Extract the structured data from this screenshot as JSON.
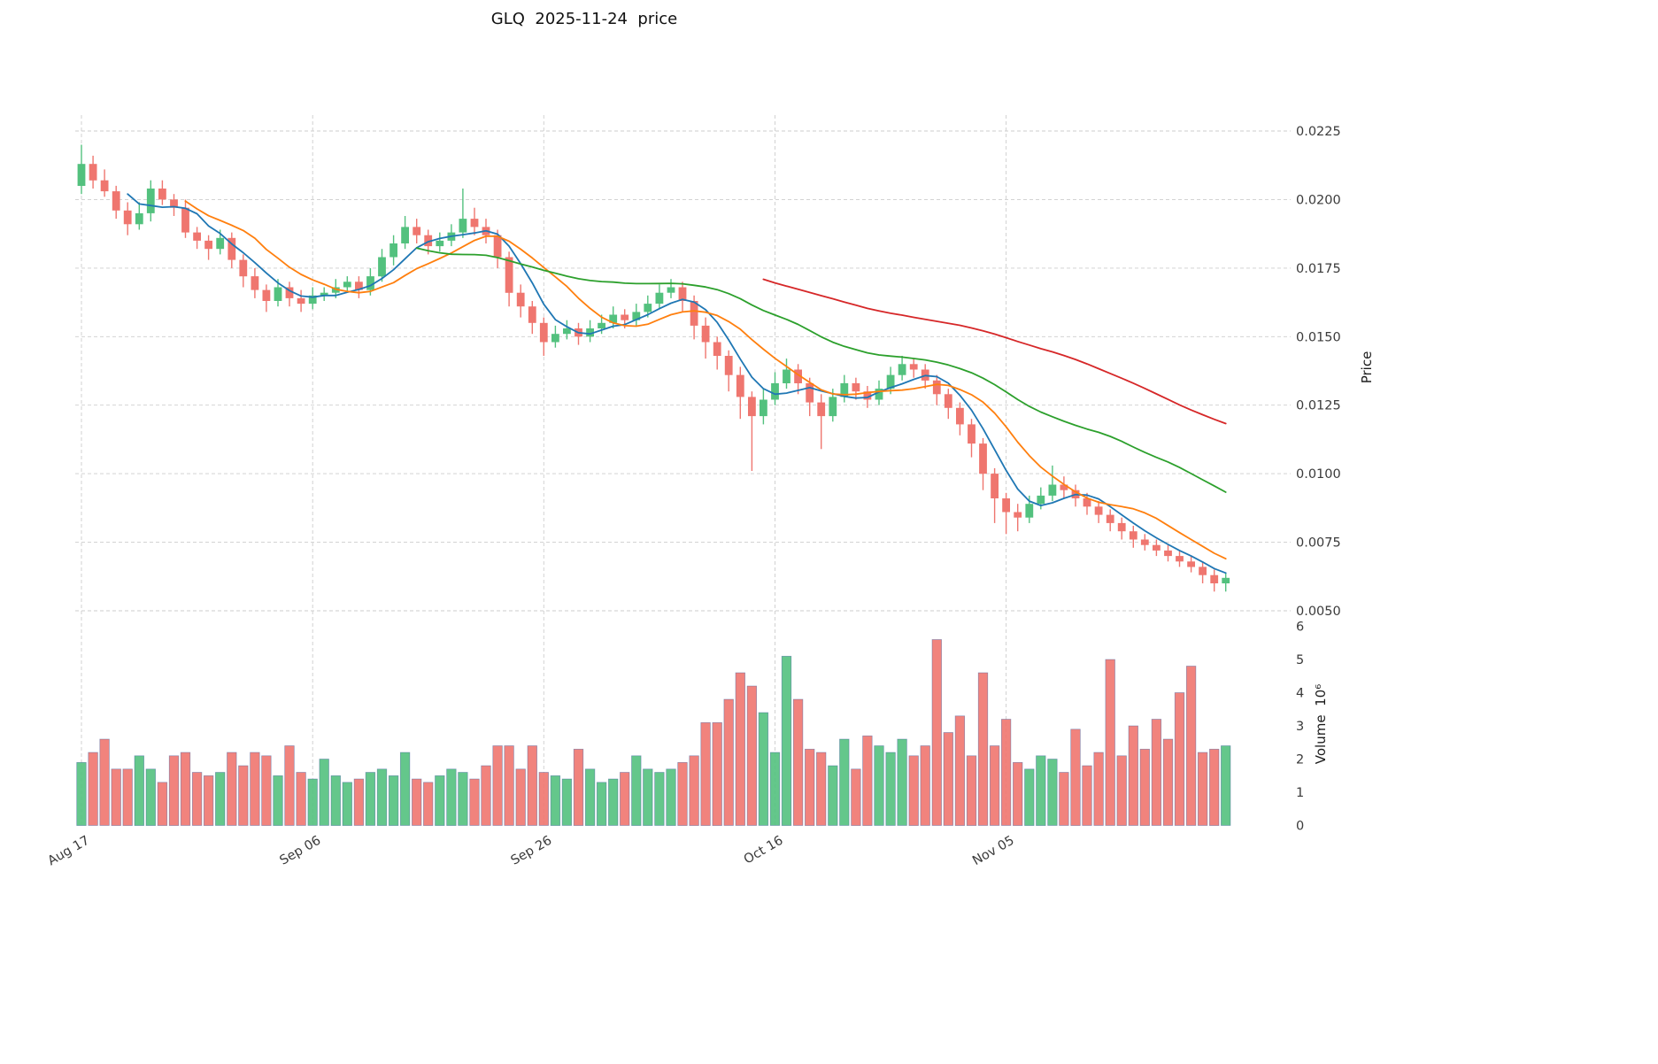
{
  "chart_data": {
    "type": "candlestick",
    "title": "GLQ  2025-11-24  price",
    "price_axis": {
      "label": "Price",
      "ticks": [
        "0.0050",
        "0.0075",
        "0.0100",
        "0.0125",
        "0.0150",
        "0.0175",
        "0.0200",
        "0.0225"
      ]
    },
    "volume_axis": {
      "label": "Volume  10⁶",
      "ticks": [
        "0",
        "1",
        "2",
        "3",
        "4",
        "5",
        "6"
      ],
      "unit": "10⁶"
    },
    "x_ticks": [
      {
        "index": 0,
        "label": "Aug 17"
      },
      {
        "index": 20,
        "label": "Sep 06"
      },
      {
        "index": 40,
        "label": "Sep 26"
      },
      {
        "index": 60,
        "label": "Oct 16"
      },
      {
        "index": 80,
        "label": "Nov 05"
      }
    ],
    "moving_averages": [
      {
        "window": 5,
        "color": "#1f77b4"
      },
      {
        "window": 10,
        "color": "#ff7f0e"
      },
      {
        "window": 30,
        "color": "#2ca02c"
      },
      {
        "window": 60,
        "color": "#d62728"
      }
    ],
    "colors": {
      "up": "#53c17e",
      "down": "#ef766f",
      "grid": "#cdcdcd",
      "tick_text": "#3a3a3a",
      "volume_edge": "#3f5f9f"
    },
    "open": [
      0.0205,
      0.0213,
      0.0207,
      0.0203,
      0.0196,
      0.0191,
      0.0195,
      0.0204,
      0.02,
      0.0197,
      0.0188,
      0.0185,
      0.0182,
      0.0186,
      0.0178,
      0.0172,
      0.0167,
      0.0163,
      0.0168,
      0.0164,
      0.0162,
      0.0165,
      0.0166,
      0.0168,
      0.017,
      0.0167,
      0.0172,
      0.0179,
      0.0184,
      0.019,
      0.0187,
      0.0183,
      0.0185,
      0.0188,
      0.0193,
      0.019,
      0.0187,
      0.0179,
      0.0166,
      0.0161,
      0.0155,
      0.0148,
      0.0151,
      0.0153,
      0.015,
      0.0153,
      0.0155,
      0.0158,
      0.0156,
      0.0159,
      0.0162,
      0.0166,
      0.0168,
      0.0163,
      0.0154,
      0.0148,
      0.0143,
      0.0136,
      0.0128,
      0.0121,
      0.0127,
      0.0133,
      0.0138,
      0.0133,
      0.0126,
      0.0121,
      0.0128,
      0.0133,
      0.013,
      0.0127,
      0.0131,
      0.0136,
      0.014,
      0.0138,
      0.0134,
      0.0129,
      0.0124,
      0.0118,
      0.0111,
      0.01,
      0.0091,
      0.0086,
      0.0084,
      0.0089,
      0.0092,
      0.0096,
      0.0094,
      0.0091,
      0.0088,
      0.0085,
      0.0082,
      0.0079,
      0.0076,
      0.0074,
      0.0072,
      0.007,
      0.0068,
      0.0066,
      0.0063,
      0.006
    ],
    "high": [
      0.022,
      0.0216,
      0.0211,
      0.0205,
      0.0199,
      0.0199,
      0.0207,
      0.0207,
      0.0202,
      0.02,
      0.019,
      0.0187,
      0.0189,
      0.0188,
      0.018,
      0.0175,
      0.0169,
      0.0171,
      0.017,
      0.0167,
      0.0168,
      0.0168,
      0.0171,
      0.0172,
      0.0172,
      0.0175,
      0.0182,
      0.0187,
      0.0194,
      0.0193,
      0.0189,
      0.0188,
      0.0191,
      0.0204,
      0.0197,
      0.0193,
      0.0189,
      0.0181,
      0.0169,
      0.0163,
      0.0157,
      0.0154,
      0.0156,
      0.0155,
      0.0156,
      0.0158,
      0.0161,
      0.016,
      0.0162,
      0.0165,
      0.0169,
      0.0171,
      0.017,
      0.0165,
      0.0157,
      0.015,
      0.0145,
      0.0139,
      0.013,
      0.0131,
      0.0137,
      0.0142,
      0.014,
      0.0135,
      0.0129,
      0.0131,
      0.0136,
      0.0135,
      0.0132,
      0.0134,
      0.0139,
      0.0143,
      0.0142,
      0.014,
      0.0136,
      0.0131,
      0.0126,
      0.012,
      0.0113,
      0.0102,
      0.0093,
      0.0089,
      0.0092,
      0.0095,
      0.0103,
      0.0099,
      0.0096,
      0.0093,
      0.009,
      0.0087,
      0.0084,
      0.0081,
      0.0078,
      0.0076,
      0.0074,
      0.0072,
      0.007,
      0.0068,
      0.0065,
      0.0064
    ],
    "low": [
      0.0202,
      0.0204,
      0.0201,
      0.0193,
      0.0187,
      0.0189,
      0.0192,
      0.0198,
      0.0194,
      0.0186,
      0.0182,
      0.0178,
      0.018,
      0.0175,
      0.0168,
      0.0164,
      0.0159,
      0.0161,
      0.0161,
      0.0159,
      0.016,
      0.0163,
      0.0164,
      0.0166,
      0.0164,
      0.0165,
      0.017,
      0.0176,
      0.0182,
      0.0184,
      0.018,
      0.0181,
      0.0183,
      0.0186,
      0.0187,
      0.0184,
      0.0175,
      0.0161,
      0.0157,
      0.0151,
      0.0143,
      0.0146,
      0.0149,
      0.0147,
      0.0148,
      0.0151,
      0.0153,
      0.0153,
      0.0154,
      0.0157,
      0.016,
      0.0164,
      0.0159,
      0.0149,
      0.0142,
      0.0138,
      0.013,
      0.012,
      0.0101,
      0.0118,
      0.0125,
      0.0131,
      0.0129,
      0.0121,
      0.0109,
      0.0119,
      0.0126,
      0.0127,
      0.0124,
      0.0125,
      0.0129,
      0.0134,
      0.0135,
      0.0131,
      0.0125,
      0.012,
      0.0114,
      0.0106,
      0.0094,
      0.0082,
      0.0078,
      0.0079,
      0.0082,
      0.0087,
      0.009,
      0.0091,
      0.0088,
      0.0085,
      0.0082,
      0.0079,
      0.0076,
      0.0073,
      0.0072,
      0.007,
      0.0068,
      0.0066,
      0.0064,
      0.006,
      0.0057,
      0.0057
    ],
    "close": [
      0.0213,
      0.0207,
      0.0203,
      0.0196,
      0.0191,
      0.0195,
      0.0204,
      0.02,
      0.0197,
      0.0188,
      0.0185,
      0.0182,
      0.0186,
      0.0178,
      0.0172,
      0.0167,
      0.0163,
      0.0168,
      0.0164,
      0.0162,
      0.0165,
      0.0166,
      0.0168,
      0.017,
      0.0167,
      0.0172,
      0.0179,
      0.0184,
      0.019,
      0.0187,
      0.0183,
      0.0185,
      0.0188,
      0.0193,
      0.019,
      0.0187,
      0.0179,
      0.0166,
      0.0161,
      0.0155,
      0.0148,
      0.0151,
      0.0153,
      0.015,
      0.0153,
      0.0155,
      0.0158,
      0.0156,
      0.0159,
      0.0162,
      0.0166,
      0.0168,
      0.0163,
      0.0154,
      0.0148,
      0.0143,
      0.0136,
      0.0128,
      0.0121,
      0.0127,
      0.0133,
      0.0138,
      0.0133,
      0.0126,
      0.0121,
      0.0128,
      0.0133,
      0.013,
      0.0127,
      0.0131,
      0.0136,
      0.014,
      0.0138,
      0.0134,
      0.0129,
      0.0124,
      0.0118,
      0.0111,
      0.01,
      0.0091,
      0.0086,
      0.0084,
      0.0089,
      0.0092,
      0.0096,
      0.0094,
      0.0091,
      0.0088,
      0.0085,
      0.0082,
      0.0079,
      0.0076,
      0.0074,
      0.0072,
      0.007,
      0.0068,
      0.0066,
      0.0063,
      0.006,
      0.0062
    ],
    "volume": [
      1.9,
      2.2,
      2.6,
      1.7,
      1.7,
      2.1,
      1.7,
      1.3,
      2.1,
      2.2,
      1.6,
      1.5,
      1.6,
      2.2,
      1.8,
      2.2,
      2.1,
      1.5,
      2.4,
      1.6,
      1.4,
      2.0,
      1.5,
      1.3,
      1.4,
      1.6,
      1.7,
      1.5,
      2.2,
      1.4,
      1.3,
      1.5,
      1.7,
      1.6,
      1.4,
      1.8,
      2.4,
      2.4,
      1.7,
      2.4,
      1.6,
      1.5,
      1.4,
      2.3,
      1.7,
      1.3,
      1.4,
      1.6,
      2.1,
      1.7,
      1.6,
      1.7,
      1.9,
      2.1,
      3.1,
      3.1,
      3.8,
      4.6,
      4.2,
      3.4,
      2.2,
      5.1,
      3.8,
      2.3,
      2.2,
      1.8,
      2.6,
      1.7,
      2.7,
      2.4,
      2.2,
      2.6,
      2.1,
      2.4,
      5.6,
      2.8,
      3.3,
      2.1,
      4.6,
      2.4,
      3.2,
      1.9,
      1.7,
      2.1,
      2.0,
      1.6,
      2.9,
      1.8,
      2.2,
      5.0,
      2.1,
      3.0,
      2.3,
      3.2,
      2.6,
      4.0,
      4.8,
      2.2,
      2.3,
      2.4
    ]
  }
}
